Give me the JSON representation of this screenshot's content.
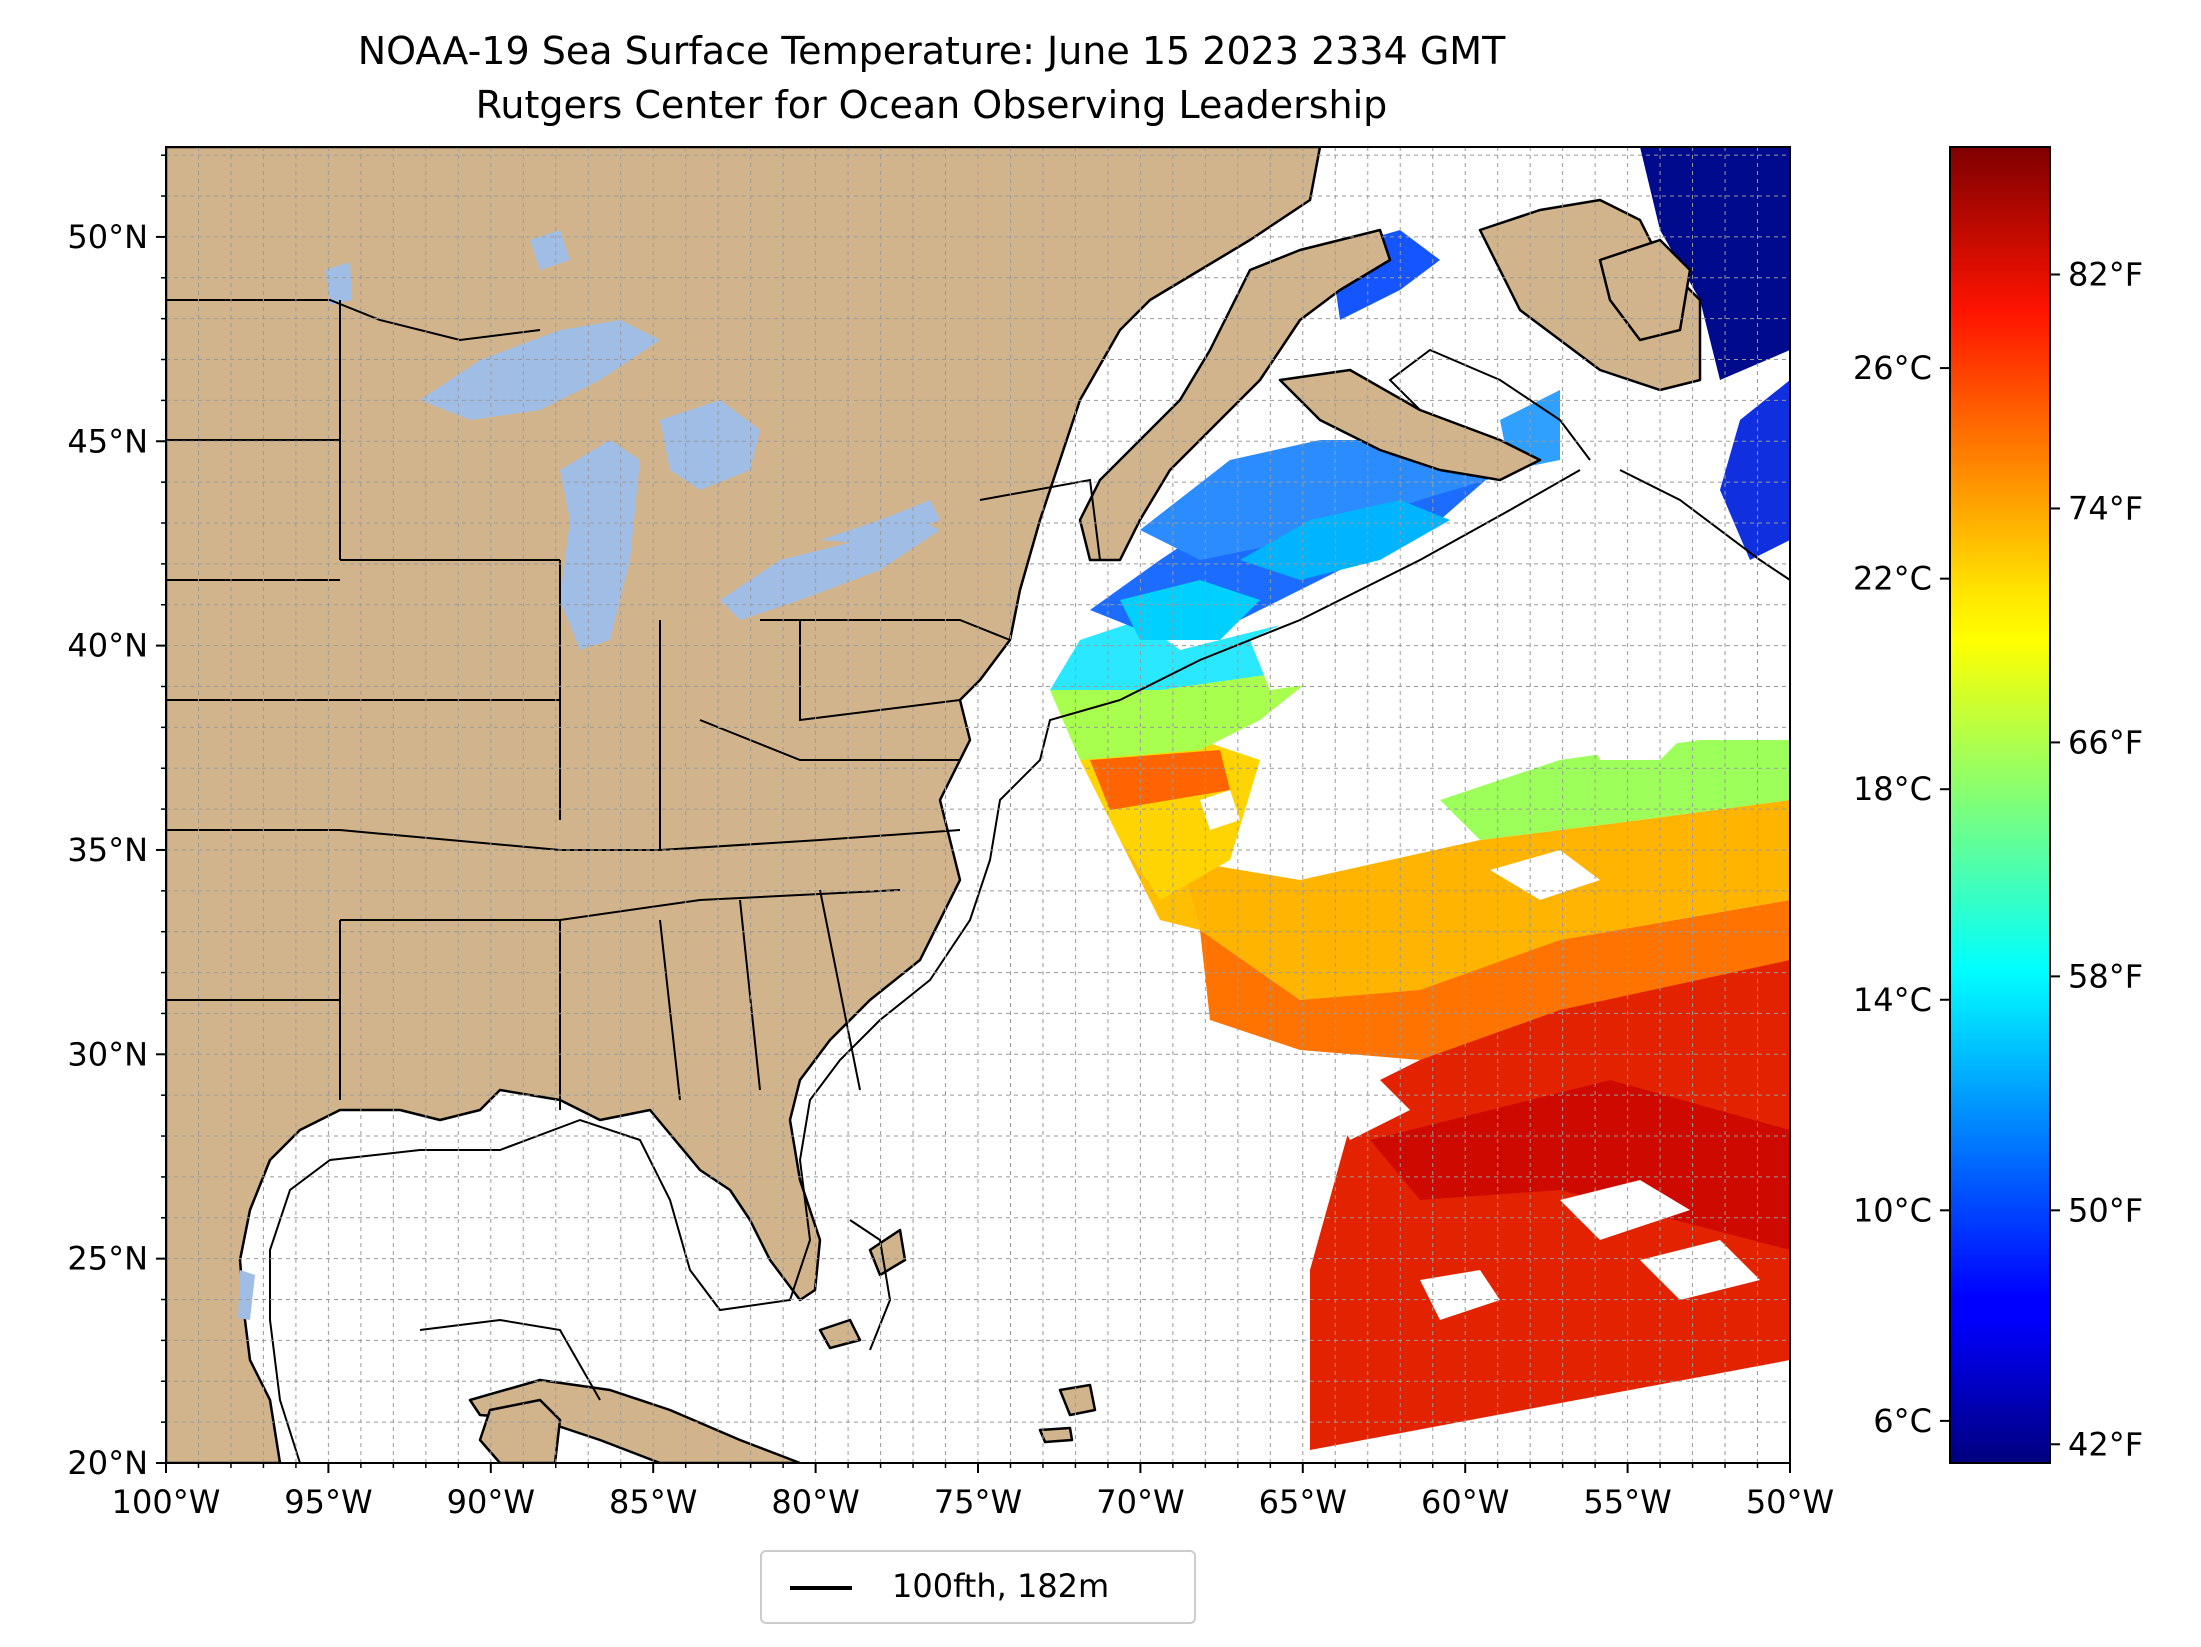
{
  "title": {
    "line1": "NOAA-19 Sea Surface Temperature: June 15 2023 2334 GMT",
    "line2": "Rutgers Center for Ocean Observing Leadership"
  },
  "map": {
    "lon_range": [
      -100,
      -50
    ],
    "lat_range": [
      20,
      52.2
    ],
    "x_ticks": [
      "100°W",
      "95°W",
      "90°W",
      "85°W",
      "80°W",
      "75°W",
      "70°W",
      "65°W",
      "60°W",
      "55°W",
      "50°W"
    ],
    "y_ticks": [
      "20°N",
      "25°N",
      "30°N",
      "35°N",
      "40°N",
      "45°N",
      "50°N"
    ],
    "grid": true,
    "land_color": "#d2b48c",
    "lake_color": "#a0bde6",
    "ocean_color": "#ffffff"
  },
  "colorbar": {
    "colormap": "jet",
    "range_c": [
      5.2,
      30.2
    ],
    "celsius_ticks": [
      "6°C",
      "10°C",
      "14°C",
      "18°C",
      "22°C",
      "26°C"
    ],
    "fahrenheit_ticks": [
      "42°F",
      "50°F",
      "58°F",
      "66°F",
      "74°F",
      "82°F"
    ]
  },
  "legend": {
    "line_label": "100fth, 182m",
    "placement": "bottom-center"
  }
}
